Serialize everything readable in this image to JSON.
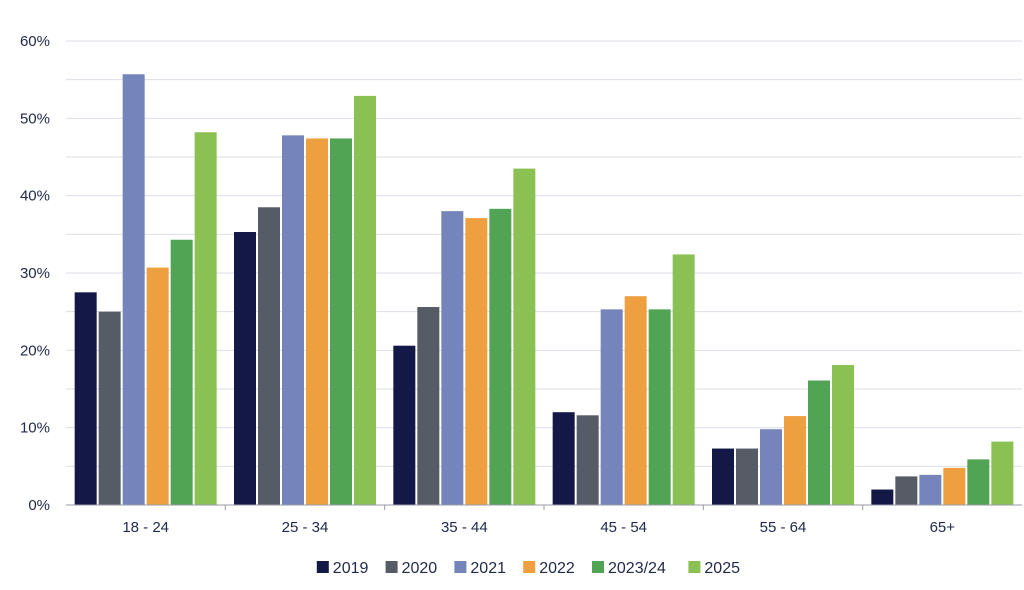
{
  "chart_data": {
    "type": "bar",
    "title": "",
    "xlabel": "",
    "ylabel": "",
    "categories": [
      "18 - 24",
      "25 - 34",
      "35 - 44",
      "45 - 54",
      "55 - 64",
      "65+"
    ],
    "ylim": [
      0,
      60
    ],
    "yticks": [
      0,
      10,
      20,
      30,
      40,
      50,
      60
    ],
    "ytick_labels": [
      "0%",
      "10%",
      "20%",
      "30%",
      "40%",
      "50%",
      "60%"
    ],
    "grid": true,
    "legend_position": "bottom",
    "series": [
      {
        "name": "2019",
        "color": "#141846",
        "values": [
          27.5,
          35.3,
          20.6,
          12.0,
          7.3,
          2.0
        ]
      },
      {
        "name": "2020",
        "color": "#565c66",
        "values": [
          25.0,
          38.5,
          25.6,
          11.6,
          7.3,
          3.7
        ]
      },
      {
        "name": "2021",
        "color": "#7585bc",
        "values": [
          55.7,
          47.8,
          38.0,
          25.3,
          9.8,
          3.9
        ]
      },
      {
        "name": "2022",
        "color": "#eea040",
        "values": [
          30.7,
          47.4,
          37.1,
          27.0,
          11.5,
          4.8
        ]
      },
      {
        "name": "2023/24",
        "color": "#52a455",
        "values": [
          34.3,
          47.4,
          38.3,
          25.3,
          16.1,
          5.9
        ]
      },
      {
        "name": "2025",
        "color": "#8bc153",
        "values": [
          48.2,
          52.9,
          43.5,
          32.4,
          18.1,
          8.2
        ]
      }
    ]
  }
}
